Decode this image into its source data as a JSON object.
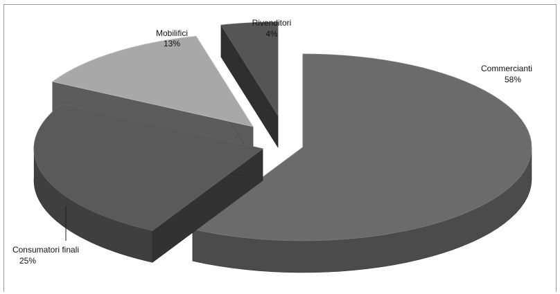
{
  "chart_data": {
    "type": "pie",
    "style": "3d-exploded",
    "title": "",
    "legend": "none",
    "slices": [
      {
        "name": "Commercianti",
        "value": 58,
        "label": "58%",
        "color": "#6b6b6b"
      },
      {
        "name": "Consumatori finali",
        "value": 25,
        "label": "25%",
        "color": "#5a5a5a"
      },
      {
        "name": "Mobilifici",
        "value": 13,
        "label": "13%",
        "color": "#a8a8a8"
      },
      {
        "name": "Rivenditori",
        "value": 4,
        "label": "4%",
        "color": "#555555"
      }
    ]
  }
}
